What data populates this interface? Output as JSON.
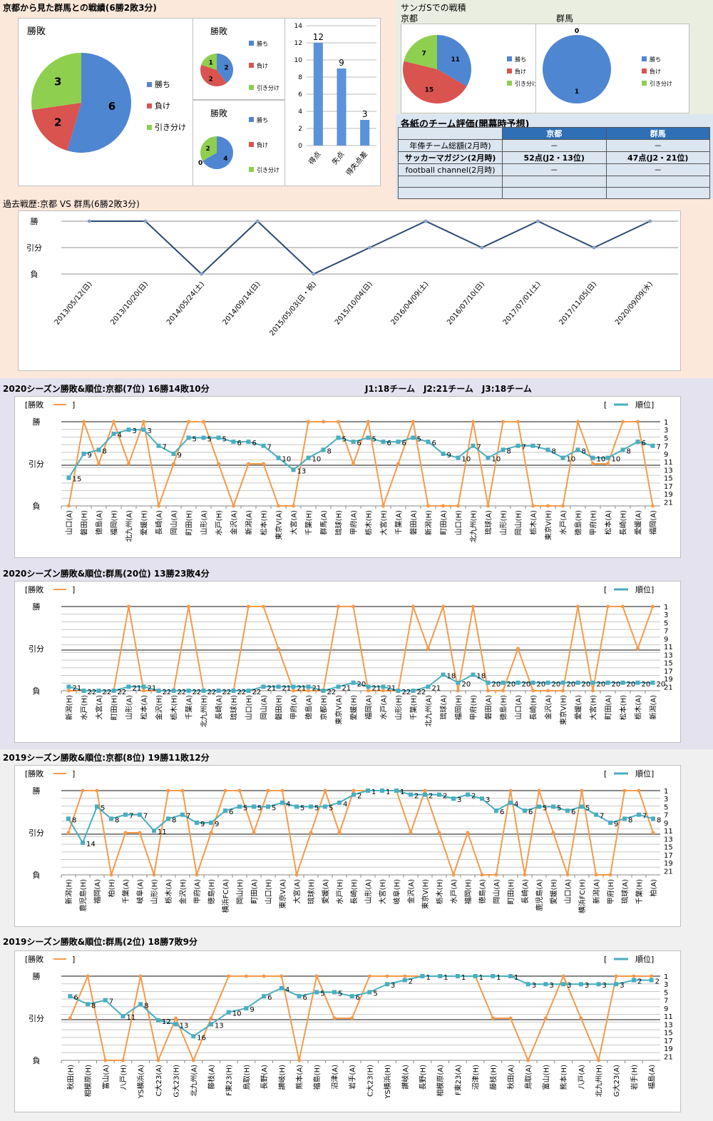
{
  "colors": {
    "win": "#4f86d1",
    "loss": "#d9534f",
    "draw": "#8fcf4f",
    "result_line": "#f59a4a",
    "rank_line": "#4aaec0",
    "h2h_line": "#2c4a73",
    "bar": "#5b93d8",
    "kyoto_bg": "#fce8db",
    "sanga_bg": "#eaeee0",
    "eval_bg": "#dce6f1",
    "season2020_bg": "#e4e2ef",
    "season2019_bg": "#f0f0f0"
  },
  "section_titles": {
    "h2h_summary": "京都から見た群馬との戦績(6勝2敗3分)",
    "sanga_s": "サンガSでの戦積",
    "sanga_kyoto": "京都",
    "sanga_gunma": "群馬",
    "evaluation": "各紙のチーム評価(開幕時予想)",
    "history": "過去戦歴:京都 VS 群馬(6勝2敗3分)",
    "k2020": "2020シーズン勝敗&順位:京都(7位) 16勝14敗10分",
    "league_info": "J1:18チーム　J2:21チーム　J3:18チーム",
    "g2020": "2020シーズン勝敗&順位:群馬(20位) 13勝23敗4分",
    "k2019": "2019シーズン勝敗&順位:京都(8位) 19勝11敗12分",
    "g2019": "2019シーズン勝敗&順位:群馬(2位) 18勝7敗9分"
  },
  "legend": {
    "win": "勝ち",
    "loss": "負け",
    "draw": "引き分け",
    "result": "[勝敗",
    "result_end": "]",
    "rank_open": "[",
    "rank": "順位]"
  },
  "evaluation": {
    "headers": [
      "",
      "京都",
      "群馬"
    ],
    "rows": [
      [
        "年俸チーム総額(2月時)",
        "－",
        "－"
      ],
      [
        "サッカーマガジン(2月時)",
        "52点(J2・13位)",
        "47点(J2・21位)"
      ],
      [
        "football channel(2月時)",
        "－",
        "－"
      ],
      [
        "",
        "",
        ""
      ],
      [
        "",
        "",
        ""
      ]
    ]
  },
  "chart_data": [
    {
      "id": "pie-main",
      "type": "pie",
      "title": "勝敗",
      "labels": [
        "勝ち",
        "負け",
        "引き分け"
      ],
      "values": [
        6,
        2,
        3
      ]
    },
    {
      "id": "pie-small-1",
      "type": "pie",
      "title": "勝敗",
      "labels": [
        "勝ち",
        "負け",
        "引き分け"
      ],
      "values": [
        2,
        2,
        1
      ]
    },
    {
      "id": "pie-small-2",
      "type": "pie",
      "title": "勝敗",
      "labels": [
        "勝ち",
        "負け",
        "引き分け"
      ],
      "values": [
        4,
        0,
        2
      ]
    },
    {
      "id": "bar-goals",
      "type": "bar",
      "categories": [
        "得点",
        "失点",
        "得失点差"
      ],
      "values": [
        12,
        9,
        3
      ],
      "ylim": [
        0,
        14
      ],
      "yticks": [
        0,
        2,
        4,
        6,
        8,
        10,
        12,
        14
      ]
    },
    {
      "id": "pie-sanga-kyoto",
      "type": "pie",
      "title": "",
      "labels": [
        "勝ち",
        "負け",
        "引き分け"
      ],
      "values": [
        11,
        15,
        7
      ]
    },
    {
      "id": "pie-sanga-gunma",
      "type": "pie",
      "title": "",
      "labels": [
        "勝ち",
        "負け",
        "引き分け"
      ],
      "values": [
        1,
        0,
        0
      ]
    },
    {
      "id": "h2h-line",
      "type": "line",
      "title": "過去戦歴:京都 VS 群馬(6勝2敗3分)",
      "ylabels": [
        "勝",
        "引分",
        "負"
      ],
      "categories": [
        "2013/05/12(日)",
        "2013/10/20(日)",
        "2014/05/24(土)",
        "2014/09/14(日)",
        "2015/05/03(日・祝)",
        "2015/10/04(日)",
        "2016/04/09(土)",
        "2016/07/10(日)",
        "2017/07/01(土)",
        "2017/11/05(日)",
        "2020/09/09(水)"
      ],
      "values": [
        "W",
        "W",
        "L",
        "W",
        "L",
        "D",
        "W",
        "D",
        "W",
        "D",
        "W"
      ]
    },
    {
      "id": "k2020",
      "type": "line",
      "title": "2020シーズン勝敗&順位:京都(7位) 16勝14敗10分",
      "categories": [
        "山口(A)",
        "磐田(H)",
        "徳島(A)",
        "福岡(H)",
        "北九州(A)",
        "愛媛(H)",
        "長崎(A)",
        "岡山(A)",
        "町田(H)",
        "山形(A)",
        "水戸(H)",
        "金沢(A)",
        "新潟(A)",
        "松本(H)",
        "東京V(A)",
        "大宮(A)",
        "千葉(H)",
        "群馬(A)",
        "琉球(H)",
        "甲府(A)",
        "栃木(H)",
        "大宮(H)",
        "千葉(A)",
        "磐田(A)",
        "新潟(H)",
        "町田(A)",
        "山口(H)",
        "北九州(H)",
        "琉球(A)",
        "山形(H)",
        "岡山(H)",
        "栃木(A)",
        "東京V(H)",
        "水戸(A)",
        "徳島(H)",
        "甲府(H)",
        "松本(A)",
        "長崎(H)",
        "愛媛(A)",
        "福岡(A)"
      ],
      "results": [
        "L",
        "W",
        "D",
        "W",
        "D",
        "W",
        "L",
        "D",
        "W",
        "W",
        "D",
        "L",
        "D",
        "D",
        "L",
        "L",
        "W",
        "W",
        "W",
        "D",
        "W",
        "L",
        "D",
        "W",
        "L",
        "L",
        "L",
        "W",
        "L",
        "W",
        "W",
        "L",
        "L",
        "L",
        "W",
        "D",
        "D",
        "W",
        "W",
        "L"
      ],
      "ranks": [
        15,
        9,
        8,
        4,
        3,
        3,
        7,
        9,
        5,
        5,
        5,
        6,
        6,
        7,
        10,
        13,
        10,
        8,
        5,
        6,
        5,
        6,
        6,
        5,
        6,
        9,
        10,
        7,
        10,
        8,
        7,
        7,
        8,
        10,
        8,
        10,
        10,
        8,
        6,
        7
      ],
      "rank_axis": [
        1,
        3,
        5,
        7,
        9,
        11,
        13,
        15,
        17,
        19,
        21
      ]
    },
    {
      "id": "g2020",
      "type": "line",
      "title": "2020シーズン勝敗&順位:群馬(20位) 13勝23敗4分",
      "categories": [
        "新潟(H)",
        "水戸(H)",
        "大宮(A)",
        "町田(H)",
        "山形(A)",
        "松本(A)",
        "金沢(H)",
        "栃木(H)",
        "千葉(A)",
        "北九州(H)",
        "長崎(A)",
        "琉球(H)",
        "山口(H)",
        "岡山(A)",
        "磐田(H)",
        "甲府(A)",
        "徳島(A)",
        "京都(H)",
        "東京V(A)",
        "愛媛(H)",
        "福岡(A)",
        "水戸(A)",
        "山形(H)",
        "千葉(H)",
        "北九州(A)",
        "琉球(A)",
        "福岡(H)",
        "甲府(H)",
        "磐田(A)",
        "徳島(H)",
        "山口(A)",
        "長崎(H)",
        "金沢(A)",
        "東京V(H)",
        "愛媛(A)",
        "大宮(H)",
        "町田(A)",
        "松本(H)",
        "栃木(A)",
        "新潟(A)"
      ],
      "results": [
        "L",
        "L",
        "L",
        "L",
        "W",
        "L",
        "L",
        "L",
        "W",
        "L",
        "L",
        "L",
        "W",
        "W",
        "D",
        "L",
        "L",
        "L",
        "W",
        "W",
        "L",
        "L",
        "L",
        "W",
        "D",
        "W",
        "L",
        "W",
        "L",
        "L",
        "D",
        "L",
        "L",
        "L",
        "W",
        "L",
        "W",
        "W",
        "D",
        "W"
      ],
      "ranks": [
        21,
        22,
        22,
        22,
        21,
        21,
        22,
        22,
        22,
        22,
        22,
        22,
        22,
        21,
        21,
        21,
        21,
        22,
        21,
        20,
        21,
        21,
        22,
        22,
        21,
        18,
        20,
        18,
        20,
        20,
        20,
        20,
        20,
        20,
        20,
        20,
        20,
        20,
        20,
        20
      ],
      "rank_axis": [
        1,
        3,
        5,
        7,
        9,
        11,
        13,
        15,
        17,
        19,
        21
      ]
    },
    {
      "id": "k2019",
      "type": "line",
      "title": "2019シーズン勝敗&順位:京都(8位) 19勝11敗12分",
      "categories": [
        "新潟(H)",
        "鹿児島(H)",
        "福岡(A)",
        "柏(H)",
        "千葉(A)",
        "岐阜(A)",
        "山形(H)",
        "栃木(A)",
        "金沢(H)",
        "甲府(A)",
        "徳島(H)",
        "横浜FC(A)",
        "岡山(H)",
        "町田(A)",
        "山口(H)",
        "東京V(A)",
        "大宮(A)",
        "琉球(H)",
        "愛媛(A)",
        "水戸(H)",
        "長崎(H)",
        "山形(A)",
        "大宮(H)",
        "岐阜(H)",
        "金沢(A)",
        "東京V(H)",
        "栃木(H)",
        "水戸(A)",
        "福岡(H)",
        "徳島(A)",
        "岡山(A)",
        "町田(H)",
        "長崎(A)",
        "鹿児島(A)",
        "愛媛(H)",
        "山口(A)",
        "横浜FC(H)",
        "新潟(A)",
        "甲府(H)",
        "琉球(A)",
        "千葉(H)",
        "柏(A)"
      ],
      "results": [
        "D",
        "W",
        "W",
        "L",
        "D",
        "D",
        "L",
        "W",
        "W",
        "L",
        "D",
        "W",
        "W",
        "D",
        "W",
        "W",
        "L",
        "D",
        "W",
        "D",
        "W",
        "W",
        "W",
        "W",
        "D",
        "W",
        "D",
        "L",
        "D",
        "L",
        "L",
        "W",
        "L",
        "W",
        "D",
        "L",
        "W",
        "L",
        "L",
        "W",
        "W",
        "D"
      ],
      "ranks": [
        8,
        14,
        5,
        8,
        7,
        7,
        11,
        8,
        7,
        9,
        9,
        6,
        5,
        5,
        5,
        4,
        5,
        5,
        5,
        4,
        2,
        1,
        1,
        1,
        2,
        2,
        2,
        3,
        2,
        3,
        6,
        4,
        6,
        5,
        5,
        6,
        5,
        7,
        9,
        8,
        7,
        8
      ],
      "rank_axis": [
        1,
        3,
        5,
        7,
        9,
        11,
        13,
        15,
        17,
        19,
        21
      ]
    },
    {
      "id": "g2019",
      "type": "line",
      "title": "2019シーズン勝敗&順位:群馬(2位) 18勝7敗9分",
      "categories": [
        "秋田(H)",
        "相模原(H)",
        "富山(A)",
        "八戸(H)",
        "YS横浜(A)",
        "C大23(A)",
        "G大23(H)",
        "北九州(A)",
        "藤枝(A)",
        "F東23(H)",
        "鳥取(H)",
        "長野(A)",
        "讃岐(H)",
        "熊本(A)",
        "福島(H)",
        "沼津(A)",
        "岩手(A)",
        "C大23(H)",
        "YS横浜(H)",
        "讃岐(A)",
        "長野(H)",
        "相模原(A)",
        "F東23(A)",
        "沼津(H)",
        "藤枝(H)",
        "秋田(A)",
        "鳥取(A)",
        "富山(H)",
        "熊本(H)",
        "八戸(A)",
        "北九州(H)",
        "G大23(A)",
        "岩手(H)",
        "福島(A)"
      ],
      "results": [
        "D",
        "W",
        "L",
        "L",
        "W",
        "L",
        "D",
        "L",
        "D",
        "W",
        "W",
        "W",
        "W",
        "L",
        "W",
        "D",
        "D",
        "W",
        "W",
        "W",
        "W",
        "W",
        "W",
        "W",
        "D",
        "D",
        "L",
        "D",
        "W",
        "D",
        "L",
        "W",
        "W",
        "W"
      ],
      "ranks": [
        6,
        8,
        7,
        11,
        8,
        12,
        13,
        16,
        13,
        10,
        9,
        6,
        4,
        6,
        5,
        5,
        6,
        5,
        3,
        2,
        1,
        1,
        1,
        1,
        1,
        1,
        3,
        3,
        3,
        3,
        3,
        3,
        2,
        2
      ],
      "rank_axis": [
        1,
        3,
        5,
        7,
        9,
        11,
        13,
        15,
        17,
        19,
        21
      ]
    }
  ]
}
